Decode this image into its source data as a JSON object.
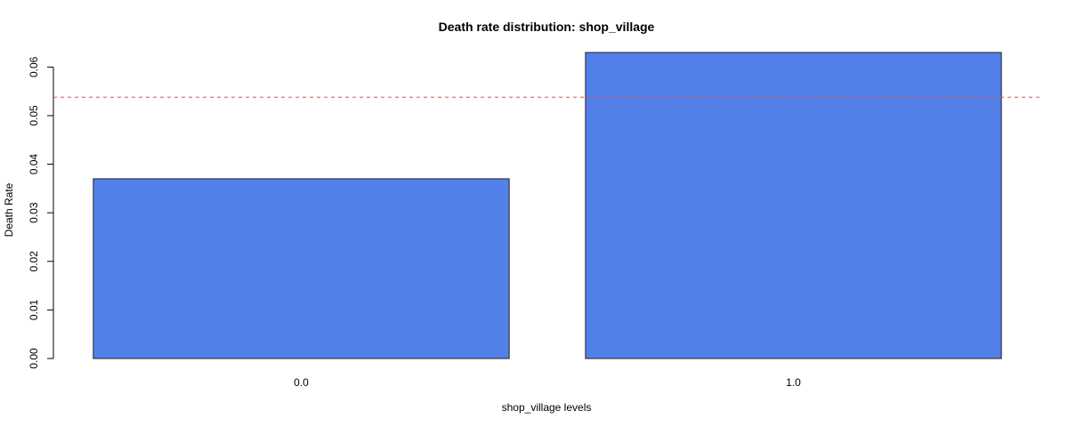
{
  "chart_data": {
    "type": "bar",
    "title": "Death rate distribution: shop_village",
    "xlabel": "shop_village levels",
    "ylabel": "Death Rate",
    "categories": [
      "0.0",
      "1.0"
    ],
    "values": [
      0.037,
      0.063
    ],
    "ylim": [
      0,
      0.063
    ],
    "yticks": [
      "0.00",
      "0.01",
      "0.02",
      "0.03",
      "0.04",
      "0.05",
      "0.06"
    ],
    "reference_line": {
      "value": 0.0538,
      "style": "dashed",
      "color": "#e05050"
    },
    "bar_color": "#5380e8",
    "bar_edge_color": "#222222",
    "grid": false,
    "legend": "none"
  }
}
